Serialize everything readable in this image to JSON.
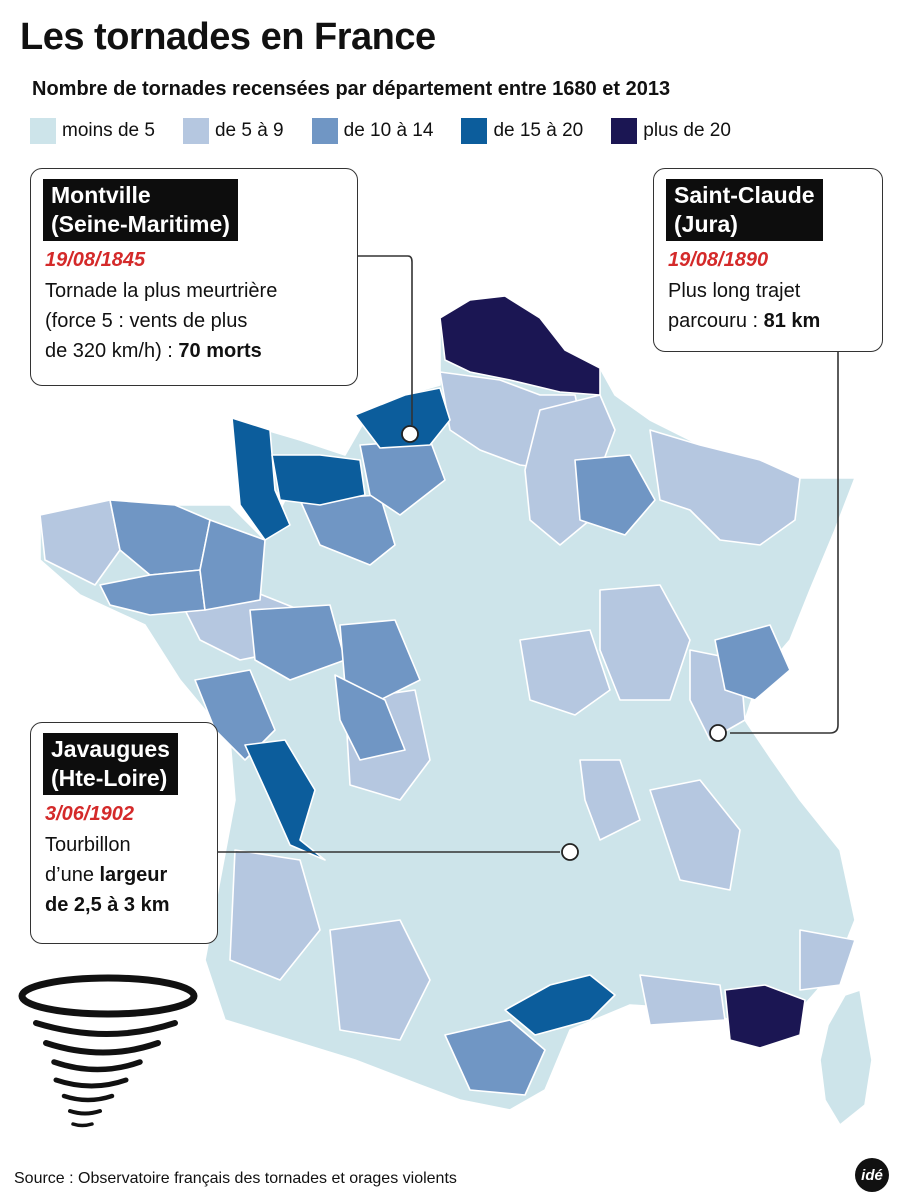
{
  "title": "Les tornades en France",
  "subtitle": "Nombre de tornades recensées par département entre 1680 et 2013",
  "legend": [
    {
      "label": "moins de 5",
      "color": "#cde4ea"
    },
    {
      "label": "de 5 à 9",
      "color": "#b5c7e0"
    },
    {
      "label": "de 10 à 14",
      "color": "#7096c4"
    },
    {
      "label": "de 15 à 20",
      "color": "#0c5d9c"
    },
    {
      "label": "plus de 20",
      "color": "#1b1653"
    }
  ],
  "callouts": {
    "montville": {
      "name_line1": "Montville",
      "name_line2": "(Seine-Maritime)",
      "date": "19/08/1845",
      "text1": "Tornade la plus meurtrière",
      "text2": "(force 5 : vents de plus",
      "text3": "de 320 km/h) : ",
      "text3_bold": "70 morts"
    },
    "saint_claude": {
      "name_line1": "Saint-Claude",
      "name_line2": "(Jura)",
      "date": "19/08/1890",
      "text1": "Plus long trajet",
      "text2": "parcouru : ",
      "text2_bold": "81 km"
    },
    "javaugues": {
      "name_line1": "Javaugues",
      "name_line2": "(Hte-Loire)",
      "date": "3/06/1902",
      "text1": "Tourbillon",
      "text2": "d’une ",
      "text2_bold": "largeur",
      "text3_bold": "de 2,5 à 3 km"
    }
  },
  "source": "Source : Observatoire français des tornades et orages violents",
  "logo": "idé"
}
